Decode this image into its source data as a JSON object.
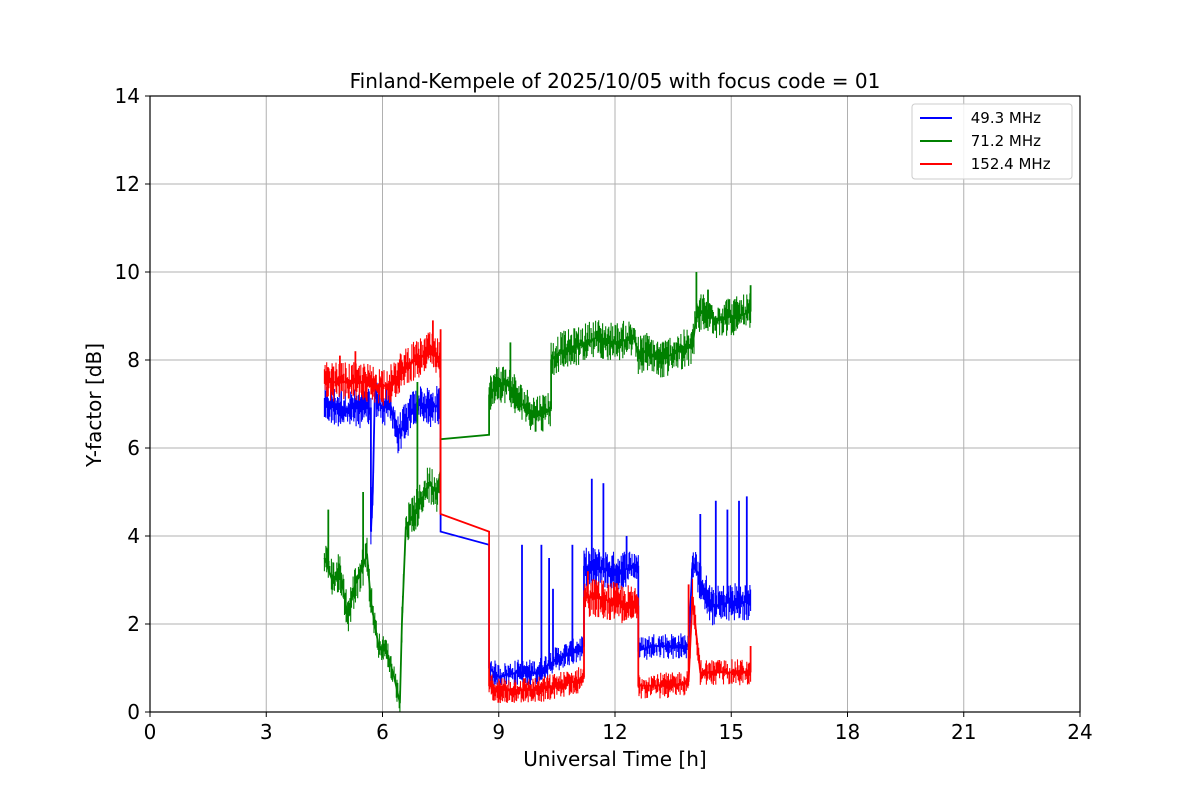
{
  "chart_data": {
    "type": "line",
    "title": "Finland-Kempele of 2025/10/05 with focus code = 01",
    "xlabel": "Universal Time [h]",
    "ylabel": "Y-factor [dB]",
    "xlim": [
      0,
      24
    ],
    "ylim": [
      0,
      14
    ],
    "xticks": [
      0,
      3,
      6,
      9,
      12,
      15,
      18,
      21,
      24
    ],
    "yticks": [
      0,
      2,
      4,
      6,
      8,
      10,
      12,
      14
    ],
    "grid": true,
    "legend_position": "top-right",
    "series": [
      {
        "name": " 49.3 MHz",
        "color": "#0000ff",
        "x": [
          4.5,
          5.0,
          5.5,
          5.7,
          5.7,
          5.75,
          5.8,
          6.0,
          6.2,
          6.4,
          6.6,
          6.8,
          7.0,
          7.2,
          7.5,
          7.5,
          8.75,
          8.75,
          9.0,
          9.5,
          10.0,
          10.5,
          11.0,
          11.2,
          11.2,
          11.5,
          12.0,
          12.6,
          12.6,
          13.0,
          13.5,
          13.9,
          14.0,
          14.2,
          14.5,
          15.0,
          15.5
        ],
        "y": [
          7.0,
          6.9,
          6.9,
          6.9,
          4.1,
          5.0,
          7.2,
          6.9,
          7.0,
          6.3,
          6.6,
          6.9,
          7.0,
          6.9,
          7.0,
          4.1,
          3.8,
          1.0,
          0.8,
          0.9,
          0.9,
          1.2,
          1.4,
          1.5,
          3.3,
          3.3,
          3.2,
          3.3,
          1.4,
          1.5,
          1.5,
          1.5,
          3.4,
          3.0,
          2.4,
          2.5,
          2.5
        ],
        "peaks": [
          [
            9.6,
            3.8
          ],
          [
            10.1,
            3.8
          ],
          [
            10.3,
            3.5
          ],
          [
            10.4,
            2.8
          ],
          [
            10.9,
            3.8
          ],
          [
            11.4,
            5.3
          ],
          [
            11.7,
            5.2
          ],
          [
            12.3,
            4.0
          ],
          [
            14.2,
            4.5
          ],
          [
            14.6,
            4.8
          ],
          [
            14.9,
            4.6
          ],
          [
            15.2,
            4.8
          ],
          [
            15.4,
            4.9
          ]
        ]
      },
      {
        "name": " 71.2 MHz",
        "color": "#008000",
        "x": [
          4.5,
          4.7,
          4.9,
          5.1,
          5.3,
          5.5,
          5.6,
          5.7,
          5.9,
          6.1,
          6.3,
          6.45,
          6.5,
          6.6,
          6.8,
          7.0,
          7.2,
          7.4,
          7.5,
          7.5,
          8.75,
          8.75,
          9.0,
          9.3,
          9.6,
          9.9,
          10.1,
          10.35,
          10.35,
          10.6,
          11.0,
          11.5,
          12.0,
          12.5,
          12.6,
          12.8,
          13.2,
          13.6,
          14.0,
          14.1,
          14.3,
          14.6,
          14.9,
          15.2,
          15.5
        ],
        "y": [
          3.5,
          3.0,
          3.2,
          2.2,
          2.9,
          3.3,
          3.6,
          2.5,
          1.5,
          1.4,
          0.8,
          0.2,
          2.0,
          4.2,
          4.5,
          4.8,
          5.2,
          5.0,
          5.5,
          6.2,
          6.3,
          7.2,
          7.5,
          7.4,
          7.0,
          6.8,
          6.8,
          6.9,
          8.0,
          8.2,
          8.3,
          8.5,
          8.4,
          8.5,
          8.1,
          8.2,
          8.0,
          8.2,
          8.3,
          9.0,
          9.1,
          8.9,
          9.0,
          9.0,
          9.1
        ],
        "peaks": [
          [
            4.6,
            4.6
          ],
          [
            5.5,
            5.0
          ],
          [
            6.9,
            7.5
          ],
          [
            9.3,
            8.4
          ],
          [
            14.1,
            10.0
          ],
          [
            14.4,
            9.6
          ],
          [
            15.5,
            9.7
          ]
        ]
      },
      {
        "name": " 152.4 MHz",
        "color": "#ff0000",
        "x": [
          4.5,
          5.0,
          5.5,
          6.0,
          6.3,
          6.6,
          6.9,
          7.2,
          7.5,
          7.5,
          8.75,
          8.75,
          9.0,
          9.5,
          10.0,
          10.5,
          11.0,
          11.2,
          11.2,
          11.5,
          12.0,
          12.6,
          12.6,
          13.0,
          13.5,
          13.9,
          14.0,
          14.2,
          14.5,
          15.0,
          15.5
        ],
        "y": [
          7.5,
          7.5,
          7.5,
          7.4,
          7.5,
          7.9,
          8.0,
          8.2,
          8.0,
          4.5,
          4.1,
          0.6,
          0.5,
          0.5,
          0.5,
          0.6,
          0.7,
          0.8,
          2.6,
          2.6,
          2.5,
          2.4,
          0.6,
          0.6,
          0.6,
          0.7,
          2.6,
          0.9,
          0.9,
          0.9,
          0.9
        ],
        "peaks": [
          [
            4.9,
            8.1
          ],
          [
            5.3,
            8.2
          ],
          [
            7.3,
            8.9
          ],
          [
            7.5,
            8.7
          ],
          [
            11.3,
            3.2
          ],
          [
            13.9,
            2.9
          ],
          [
            15.5,
            1.5
          ]
        ]
      }
    ]
  }
}
